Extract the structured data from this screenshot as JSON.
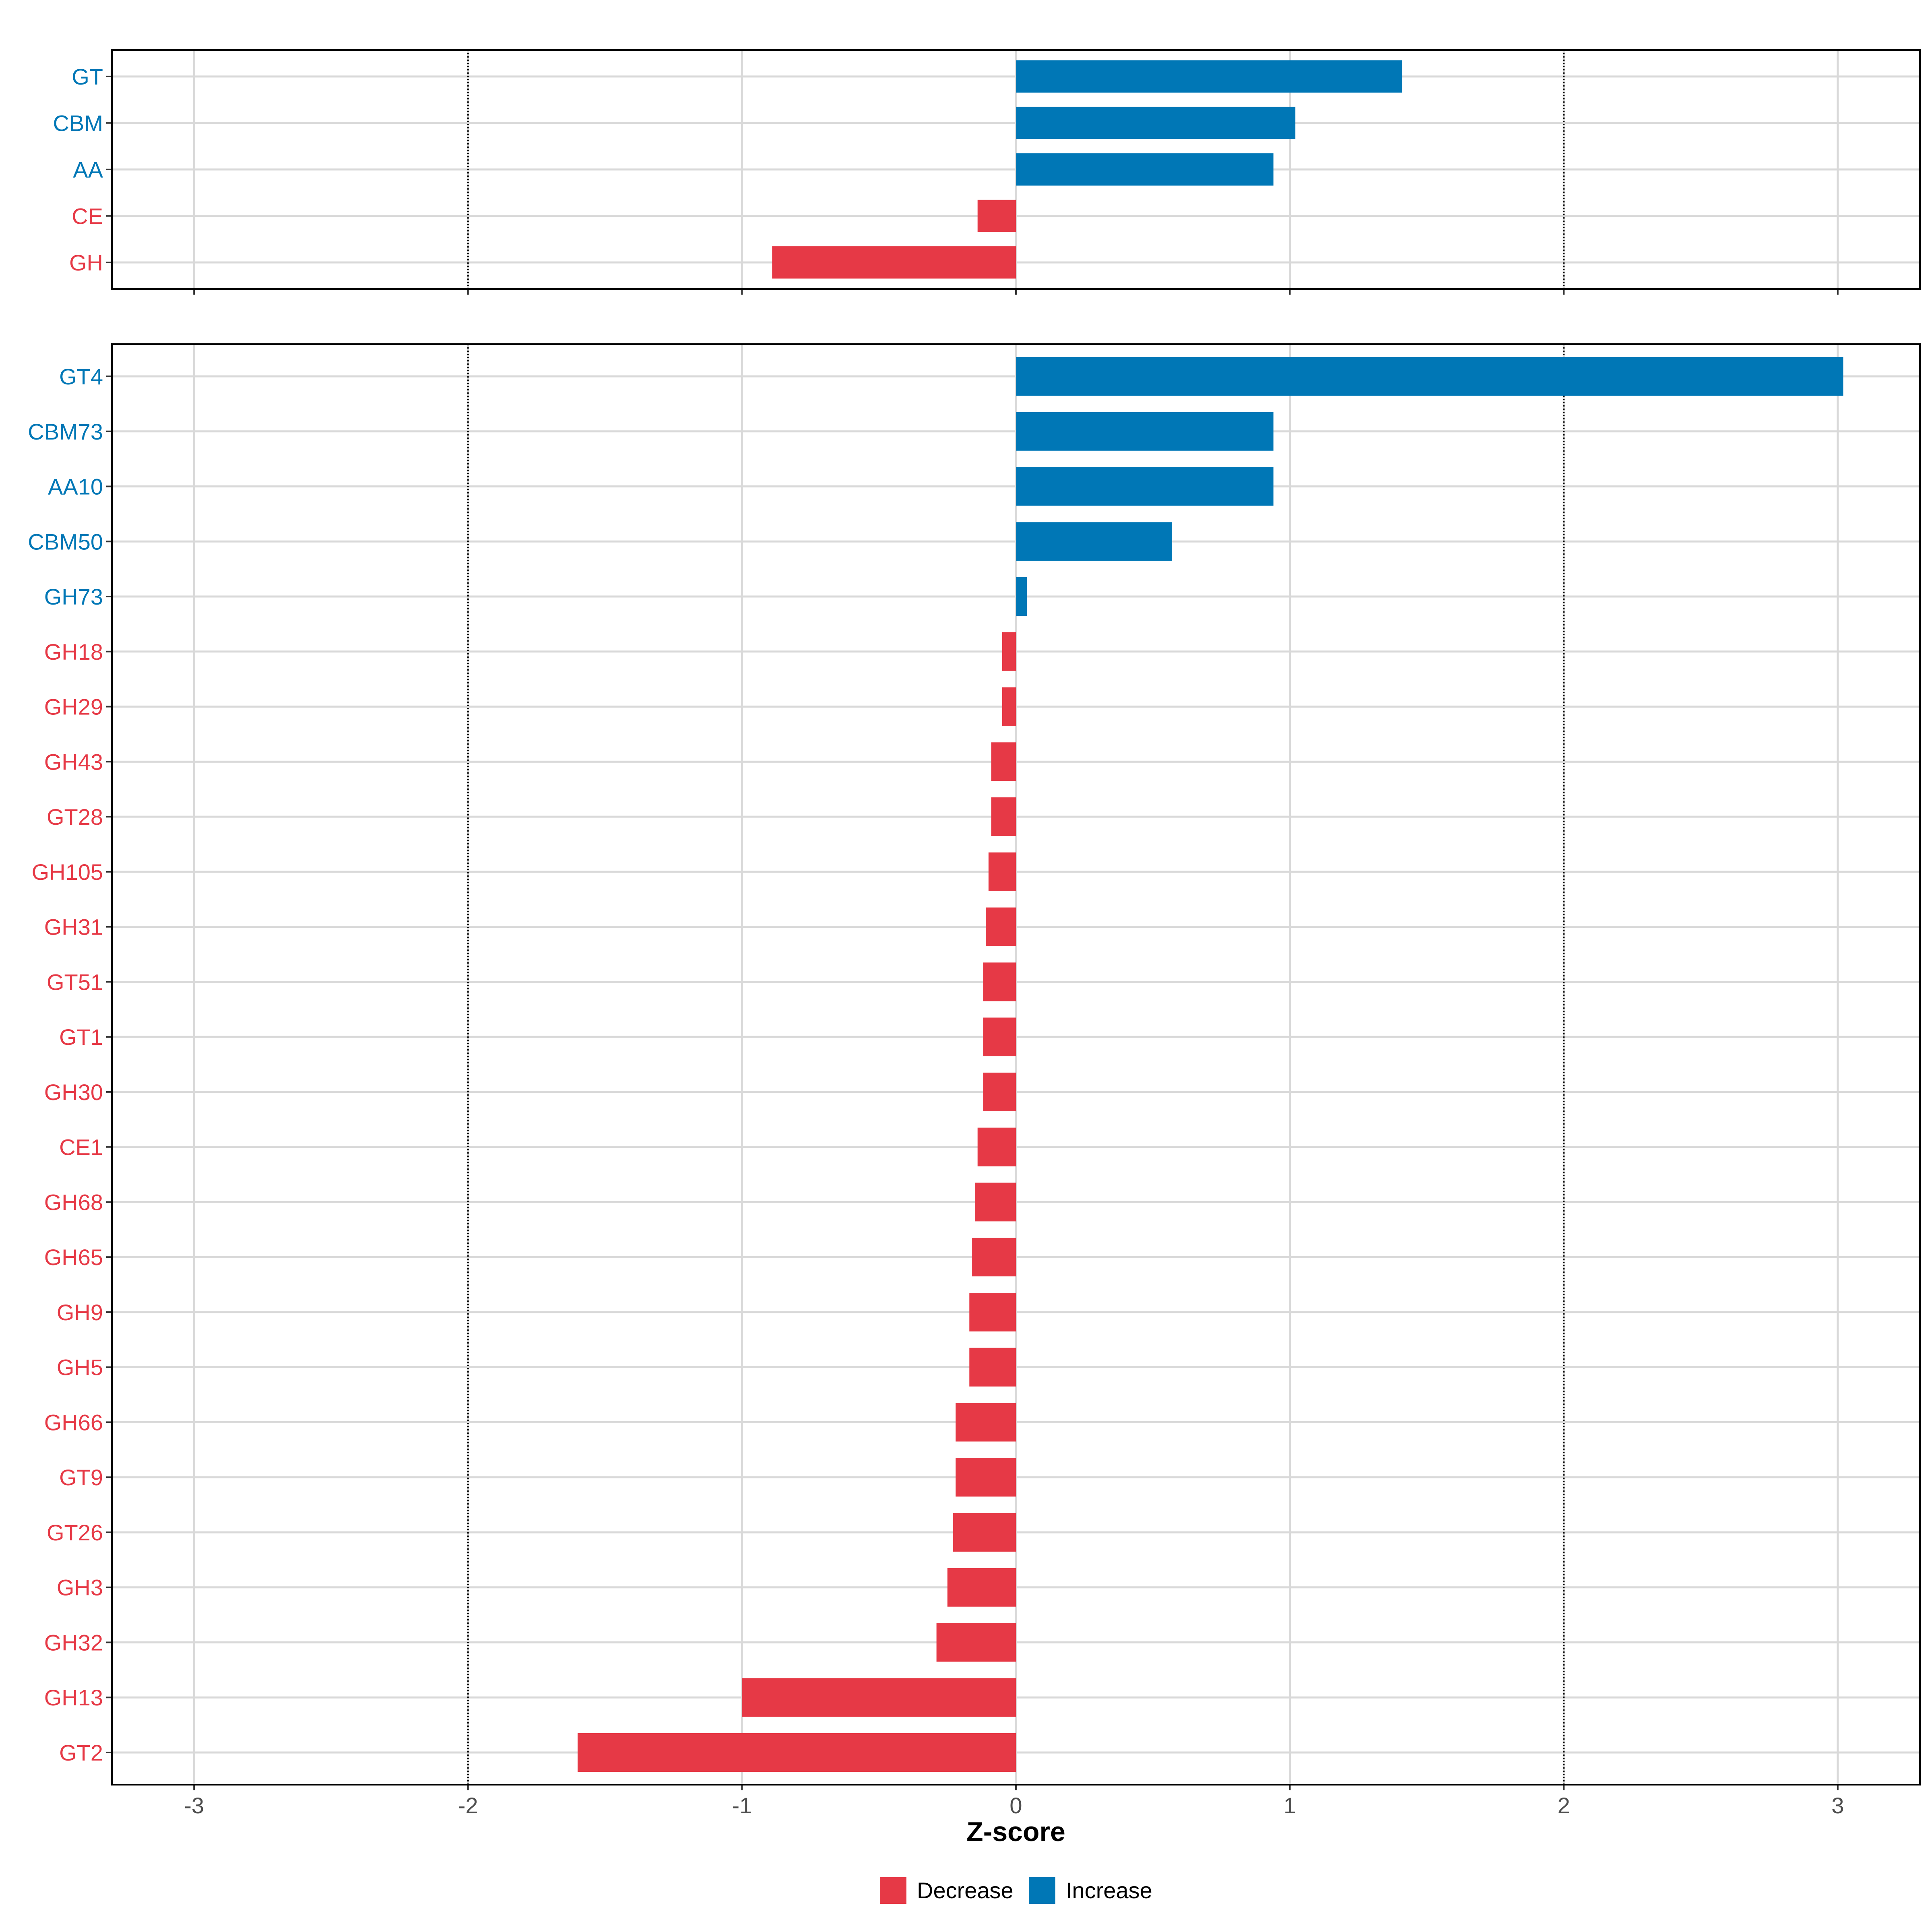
{
  "colors": {
    "decrease": "#E63946",
    "increase": "#0077B6"
  },
  "chart_data": [
    {
      "type": "bar",
      "orientation": "horizontal",
      "panel": "top",
      "categories": [
        "GT",
        "CBM",
        "AA",
        "CE",
        "GH"
      ],
      "values": [
        1.41,
        1.02,
        0.94,
        -0.14,
        -0.89
      ],
      "xlim": [
        -3.3,
        3.3
      ],
      "xticks": [
        -3,
        -2,
        -1,
        0,
        1,
        2,
        3
      ],
      "reference_lines": [
        -2,
        2
      ]
    },
    {
      "type": "bar",
      "orientation": "horizontal",
      "panel": "bottom",
      "categories": [
        "GT4",
        "CBM73",
        "AA10",
        "CBM50",
        "GH73",
        "GH18",
        "GH29",
        "GH43",
        "GT28",
        "GH105",
        "GH31",
        "GT51",
        "GT1",
        "GH30",
        "CE1",
        "GH68",
        "GH65",
        "GH9",
        "GH5",
        "GH66",
        "GT9",
        "GT26",
        "GH3",
        "GH32",
        "GH13",
        "GT2"
      ],
      "values": [
        3.02,
        0.94,
        0.94,
        0.57,
        0.04,
        -0.05,
        -0.05,
        -0.09,
        -0.09,
        -0.1,
        -0.11,
        -0.12,
        -0.12,
        -0.12,
        -0.14,
        -0.15,
        -0.16,
        -0.17,
        -0.17,
        -0.22,
        -0.22,
        -0.23,
        -0.25,
        -0.29,
        -1.0,
        -1.6
      ],
      "xlim": [
        -3.3,
        3.3
      ],
      "xticks": [
        -3,
        -2,
        -1,
        0,
        1,
        2,
        3
      ],
      "xtick_labels": [
        "-3",
        "-2",
        "-1",
        "0",
        "1",
        "2",
        "3"
      ],
      "xlabel": "Z-score",
      "reference_lines": [
        -2,
        2
      ]
    }
  ],
  "legend": {
    "position": "bottom",
    "items": [
      {
        "label": "Decrease",
        "color_key": "decrease"
      },
      {
        "label": "Increase",
        "color_key": "increase"
      }
    ]
  }
}
